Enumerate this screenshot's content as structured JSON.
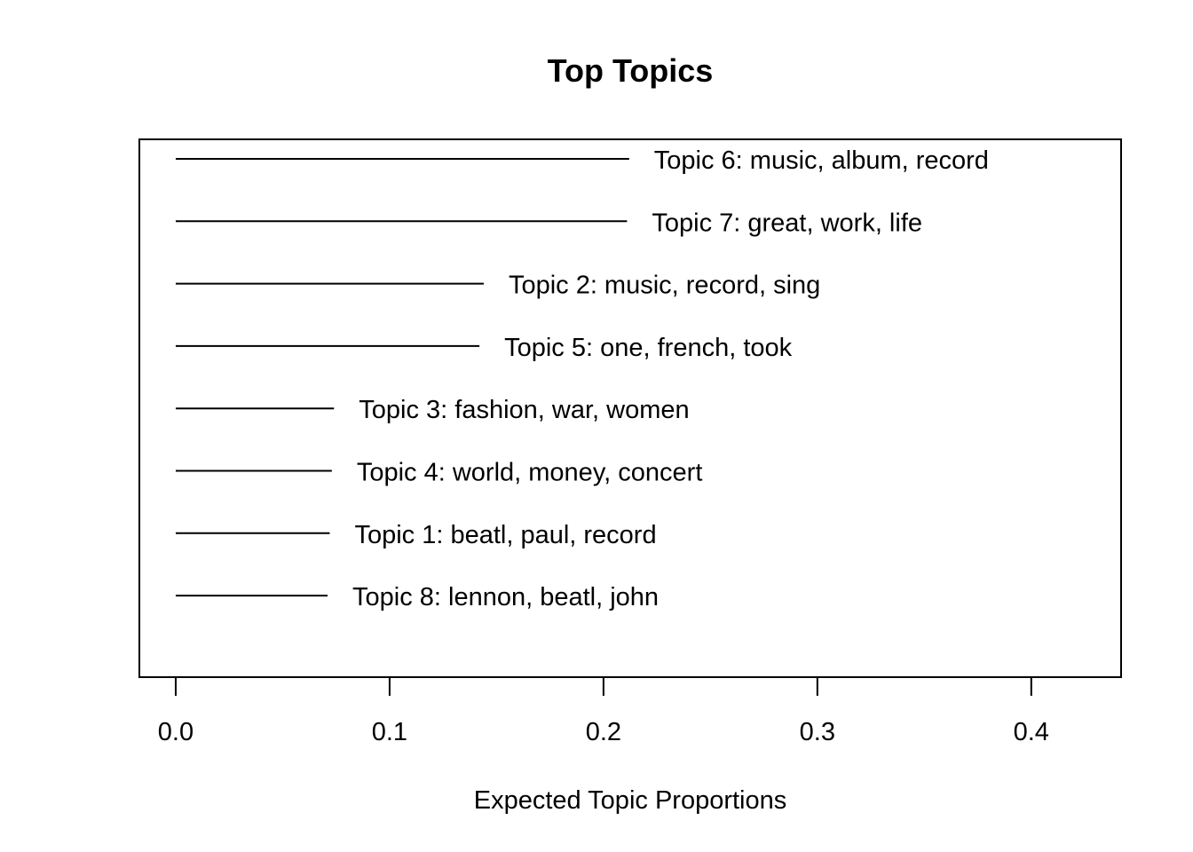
{
  "chart_data": {
    "type": "bar",
    "title": "Top Topics",
    "xlabel": "Expected Topic Proportions",
    "ylabel": "",
    "xlim": [
      -0.017,
      0.442
    ],
    "xticks": [
      0.0,
      0.1,
      0.2,
      0.3,
      0.4
    ],
    "xtick_labels": [
      "0.0",
      "0.1",
      "0.2",
      "0.3",
      "0.4"
    ],
    "grid": false,
    "legend": "none",
    "style": "horizontal line segments with text labels at line end",
    "line_color": "#000000",
    "categories": [
      "Topic 6: music, album, record",
      "Topic 7: great, work, life",
      "Topic 2: music, record, sing",
      "Topic 5: one, french, took",
      "Topic 3: fashion, war, women",
      "Topic 4: world, money, concert",
      "Topic 1: beatl, paul, record",
      "Topic 8: lennon, beatl, john"
    ],
    "values": [
      0.212,
      0.211,
      0.144,
      0.142,
      0.074,
      0.073,
      0.072,
      0.071
    ]
  }
}
